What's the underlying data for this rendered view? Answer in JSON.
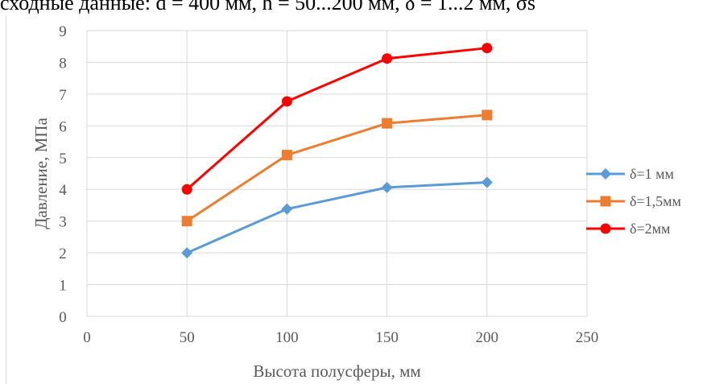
{
  "heading_text": "сходные данные: d = 400 мм, h = 50...200 мм, δ = 1...2 мм, σs",
  "chart_data": {
    "type": "line",
    "title": "",
    "xlabel": "Высота полусферы, мм",
    "ylabel": "Давление, МПа",
    "xlim": [
      0,
      250
    ],
    "ylim": [
      0,
      9
    ],
    "xticks": [
      0,
      50,
      100,
      150,
      200,
      250
    ],
    "yticks": [
      0,
      1,
      2,
      3,
      4,
      5,
      6,
      7,
      8,
      9
    ],
    "grid": true,
    "legend_position": "right",
    "x": [
      50,
      100,
      150,
      200
    ],
    "series": [
      {
        "name": "δ=1 мм",
        "values": [
          2.0,
          3.38,
          4.06,
          4.22
        ],
        "color": "#5b9bd5",
        "marker": "diamond"
      },
      {
        "name": "δ=1,5мм",
        "values": [
          3.0,
          5.08,
          6.08,
          6.34
        ],
        "color": "#ed7d31",
        "marker": "square"
      },
      {
        "name": "δ=2мм",
        "values": [
          4.0,
          6.77,
          8.12,
          8.45
        ],
        "color": "#ff0000",
        "marker": "circle"
      }
    ]
  }
}
